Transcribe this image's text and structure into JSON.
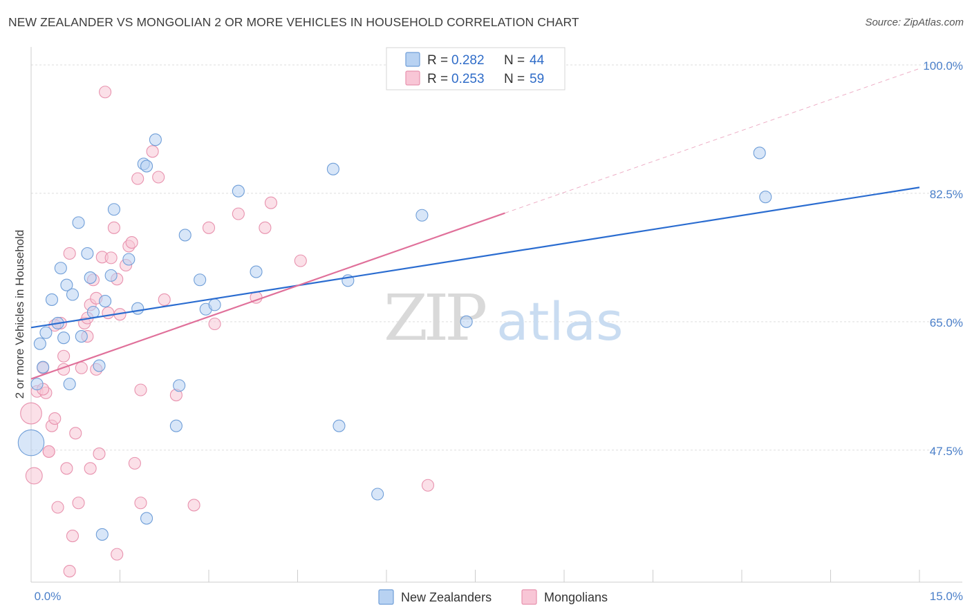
{
  "header": {
    "title": "NEW ZEALANDER VS MONGOLIAN 2 OR MORE VEHICLES IN HOUSEHOLD CORRELATION CHART",
    "source": "Source: ZipAtlas.com"
  },
  "colors": {
    "blue_fill": "#b8d2f2",
    "blue_stroke": "#6f9ed8",
    "blue_line": "#2a6cd0",
    "pink_fill": "#f8c6d6",
    "pink_stroke": "#e892ae",
    "pink_line": "#e0709a",
    "tick_text": "#4a7fc9",
    "grid": "#dddddd"
  },
  "legend": {
    "r_label": "R =",
    "n_label": "N =",
    "rows": [
      {
        "r": "0.282",
        "n": "44"
      },
      {
        "r": "0.253",
        "n": "59"
      }
    ]
  },
  "watermark": {
    "zip": "ZIP",
    "atlas": "atlas"
  },
  "chart_data": {
    "type": "scatter",
    "title": "NEW ZEALANDER VS MONGOLIAN 2 OR MORE VEHICLES IN HOUSEHOLD CORRELATION CHART",
    "xlabel": "",
    "ylabel": "2 or more Vehicles in Household",
    "xlim": [
      0,
      15
    ],
    "ylim": [
      29.5,
      101.5
    ],
    "x_tick_labels": [
      "0.0%",
      "15.0%"
    ],
    "y_ticks": [
      47.5,
      65.0,
      82.5,
      100.0
    ],
    "y_tick_labels": [
      "47.5%",
      "65.0%",
      "82.5%",
      "100.0%"
    ],
    "series": [
      {
        "name": "New Zealanders",
        "color": "blue",
        "r": 0.282,
        "n": 44,
        "trend": {
          "x0": 0,
          "y0": 64.2,
          "x1": 15,
          "y1": 83.3
        },
        "points": [
          [
            0.0,
            48.5,
            22
          ],
          [
            0.1,
            56.5,
            10
          ],
          [
            0.15,
            62.0,
            10
          ],
          [
            0.2,
            58.8,
            10
          ],
          [
            0.25,
            63.5,
            10
          ],
          [
            0.35,
            68.0,
            10
          ],
          [
            0.45,
            64.8,
            10
          ],
          [
            0.5,
            72.3,
            10
          ],
          [
            0.55,
            62.8,
            10
          ],
          [
            0.6,
            70.0,
            10
          ],
          [
            0.65,
            56.5,
            10
          ],
          [
            0.7,
            68.7,
            10
          ],
          [
            0.8,
            78.5,
            10
          ],
          [
            0.85,
            63.0,
            10
          ],
          [
            0.95,
            74.3,
            10
          ],
          [
            1.0,
            71.0,
            10
          ],
          [
            1.05,
            66.3,
            10
          ],
          [
            1.15,
            59.0,
            10
          ],
          [
            1.2,
            36.0,
            10
          ],
          [
            1.25,
            67.8,
            10
          ],
          [
            1.35,
            71.3,
            10
          ],
          [
            1.4,
            80.3,
            10
          ],
          [
            1.65,
            73.5,
            10
          ],
          [
            1.8,
            66.8,
            10
          ],
          [
            1.9,
            86.5,
            10
          ],
          [
            1.95,
            38.2,
            10
          ],
          [
            1.95,
            86.2,
            10
          ],
          [
            2.1,
            89.8,
            10
          ],
          [
            2.45,
            50.8,
            10
          ],
          [
            2.5,
            56.3,
            10
          ],
          [
            2.6,
            76.8,
            10
          ],
          [
            2.85,
            70.7,
            10
          ],
          [
            2.95,
            66.7,
            10
          ],
          [
            3.1,
            67.3,
            10
          ],
          [
            3.5,
            82.8,
            10
          ],
          [
            3.8,
            71.8,
            10
          ],
          [
            5.1,
            85.8,
            10
          ],
          [
            5.2,
            50.8,
            10
          ],
          [
            5.35,
            70.6,
            10
          ],
          [
            5.85,
            41.5,
            10
          ],
          [
            6.6,
            79.5,
            10
          ],
          [
            7.35,
            65.0,
            10
          ],
          [
            12.3,
            88.0,
            10
          ],
          [
            12.4,
            82.0,
            10
          ]
        ]
      },
      {
        "name": "Mongolians",
        "color": "pink",
        "r": 0.253,
        "n": 59,
        "trend": {
          "x0": 0,
          "y0": 57.2,
          "x1": 8.0,
          "y1": 79.8
        },
        "trend_ext": {
          "x0": 8.0,
          "y0": 79.8,
          "x1": 15,
          "y1": 99.5
        },
        "points": [
          [
            0.0,
            52.5,
            18
          ],
          [
            0.05,
            44.0,
            14
          ],
          [
            0.1,
            55.5,
            10
          ],
          [
            0.2,
            58.7,
            10
          ],
          [
            0.25,
            55.3,
            10
          ],
          [
            0.3,
            47.3,
            10
          ],
          [
            0.35,
            50.8,
            10
          ],
          [
            0.4,
            51.8,
            10
          ],
          [
            0.45,
            39.7,
            10
          ],
          [
            0.5,
            64.8,
            10
          ],
          [
            0.55,
            60.3,
            10
          ],
          [
            0.6,
            45.0,
            10
          ],
          [
            0.65,
            74.3,
            10
          ],
          [
            0.65,
            31.0,
            10
          ],
          [
            0.7,
            35.8,
            10
          ],
          [
            0.75,
            49.8,
            10
          ],
          [
            0.8,
            40.3,
            10
          ],
          [
            0.85,
            58.7,
            10
          ],
          [
            0.9,
            64.8,
            10
          ],
          [
            0.95,
            65.5,
            10
          ],
          [
            0.95,
            63.0,
            10
          ],
          [
            1.0,
            45.0,
            10
          ],
          [
            1.0,
            67.3,
            10
          ],
          [
            1.05,
            70.7,
            10
          ],
          [
            1.1,
            68.2,
            10
          ],
          [
            1.15,
            47.0,
            10
          ],
          [
            1.2,
            73.8,
            10
          ],
          [
            1.25,
            96.3,
            10
          ],
          [
            1.3,
            66.2,
            10
          ],
          [
            1.35,
            73.7,
            10
          ],
          [
            1.4,
            77.8,
            10
          ],
          [
            1.45,
            70.8,
            10
          ],
          [
            1.45,
            33.3,
            10
          ],
          [
            1.5,
            66.0,
            10
          ],
          [
            1.6,
            72.7,
            10
          ],
          [
            1.65,
            75.3,
            10
          ],
          [
            1.7,
            75.8,
            10
          ],
          [
            1.75,
            45.7,
            10
          ],
          [
            1.8,
            84.5,
            10
          ],
          [
            1.85,
            40.3,
            10
          ],
          [
            1.85,
            55.7,
            10
          ],
          [
            2.05,
            88.2,
            10
          ],
          [
            2.15,
            84.7,
            10
          ],
          [
            2.25,
            68.0,
            10
          ],
          [
            2.45,
            55.0,
            10
          ],
          [
            2.75,
            40.0,
            10
          ],
          [
            3.0,
            77.8,
            10
          ],
          [
            3.1,
            64.7,
            10
          ],
          [
            3.5,
            79.7,
            10
          ],
          [
            3.8,
            68.3,
            10
          ],
          [
            3.95,
            77.8,
            10
          ],
          [
            4.05,
            81.2,
            10
          ],
          [
            4.55,
            73.3,
            10
          ],
          [
            6.7,
            42.7,
            10
          ],
          [
            0.3,
            47.3,
            10
          ],
          [
            0.2,
            55.8,
            10
          ],
          [
            0.55,
            58.5,
            10
          ],
          [
            1.1,
            58.5,
            10
          ],
          [
            0.4,
            64.5,
            10
          ]
        ]
      }
    ]
  },
  "bottom_legend": {
    "items": [
      "New Zealanders",
      "Mongolians"
    ]
  }
}
